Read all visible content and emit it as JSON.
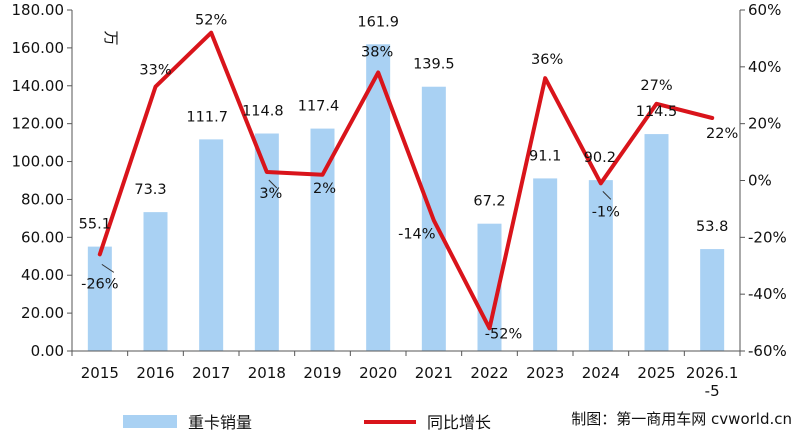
{
  "chart_data": {
    "type": "bar+line",
    "categories": [
      "2015",
      "2016",
      "2017",
      "2018",
      "2019",
      "2020",
      "2021",
      "2022",
      "2023",
      "2024",
      "2025",
      "2026.1\n-5"
    ],
    "bar_series": {
      "name": "重卡销量",
      "values": [
        55.1,
        73.3,
        111.7,
        114.8,
        117.4,
        161.9,
        139.5,
        67.2,
        91.1,
        90.2,
        114.5,
        53.8
      ],
      "labels": [
        "55.1",
        "73.3",
        "111.7",
        "114.8",
        "117.4",
        "161.9",
        "139.5",
        "67.2",
        "91.1",
        "90.2",
        "114.5",
        "53.8"
      ],
      "color": "#a9d1f3"
    },
    "line_series": {
      "name": "同比增长",
      "values": [
        -26,
        33,
        52,
        3,
        2,
        38,
        -14,
        -52,
        36,
        -1,
        27,
        22
      ],
      "labels": [
        "-26%",
        "33%",
        "52%",
        "3%",
        "2%",
        "38%",
        "-14%",
        "-52%",
        "36%",
        "-1%",
        "27%",
        "22%"
      ],
      "color": "#d9141b"
    },
    "left_axis": {
      "unit": "万",
      "min": 0,
      "max": 180,
      "step": 20,
      "tick_labels": [
        "0.00",
        "20.00",
        "40.00",
        "60.00",
        "80.00",
        "100.00",
        "120.00",
        "140.00",
        "160.00",
        "180.00"
      ]
    },
    "right_axis": {
      "min": -60,
      "max": 60,
      "step": 20,
      "tick_labels": [
        "-60%",
        "-40%",
        "-20%",
        "0%",
        "20%",
        "40%",
        "60%"
      ]
    },
    "grid": false,
    "legend_position": "bottom"
  },
  "credit": "制图：第一商用车网 cvworld.cn"
}
